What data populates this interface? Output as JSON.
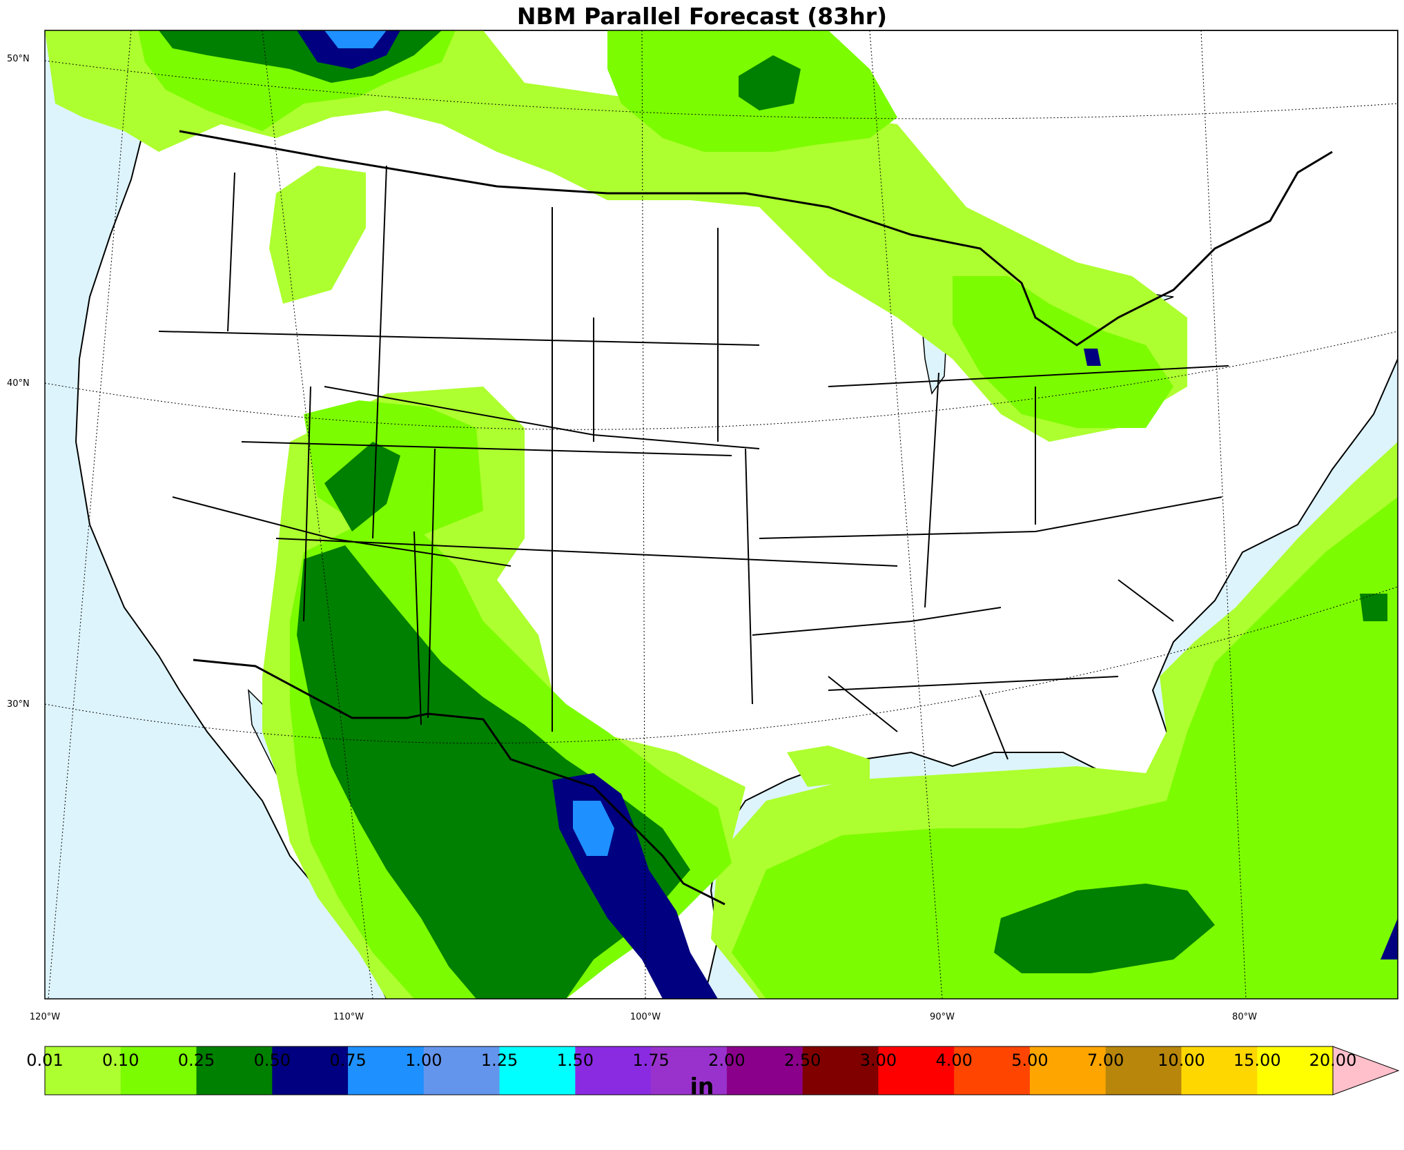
{
  "title": "NBM Parallel Forecast (83hr)",
  "units": "in",
  "lat_labels": [
    "50°N",
    "40°N",
    "30°N"
  ],
  "lon_labels": [
    "120°W",
    "110°W",
    "100°W",
    "90°W",
    "80°W"
  ],
  "colorbar": {
    "levels": [
      "0.01",
      "0.10",
      "0.25",
      "0.50",
      "0.75",
      "1.00",
      "1.25",
      "1.50",
      "1.75",
      "2.00",
      "2.50",
      "3.00",
      "4.00",
      "5.00",
      "7.00",
      "10.00",
      "15.00",
      "20.00"
    ],
    "colors": [
      "#adff2f",
      "#7cfc00",
      "#008000",
      "#000080",
      "#1e90ff",
      "#6495ed",
      "#00ffff",
      "#8a2be2",
      "#9932cc",
      "#8b008b",
      "#800000",
      "#ff0000",
      "#ff4500",
      "#ffa500",
      "#b8860b",
      "#ffd700",
      "#ffff00"
    ],
    "extend_color": "#ffc0cb"
  },
  "map_colors": {
    "ocean": "#ddf4fc",
    "land": "#ffffff",
    "boundary": "#000000"
  }
}
